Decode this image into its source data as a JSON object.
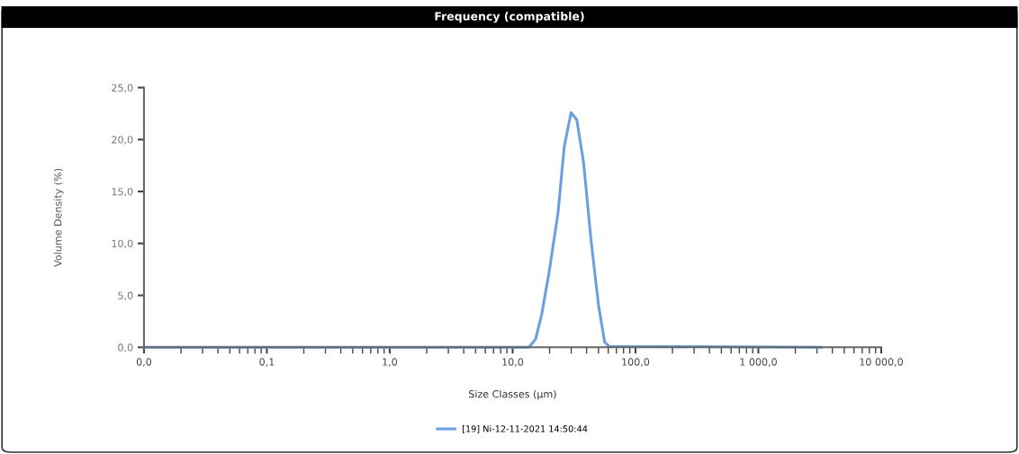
{
  "chart_data": {
    "type": "line",
    "title": "Frequency (compatible)",
    "xlabel": "Size Classes (µm)",
    "ylabel": "Volume Density (%)",
    "log": "x",
    "xlim": [
      0.01,
      10000
    ],
    "xticks": [
      {
        "value": 0.01,
        "label": "0,0"
      },
      {
        "value": 0.1,
        "label": "0,1"
      },
      {
        "value": 1,
        "label": "1,0"
      },
      {
        "value": 10,
        "label": "10,0"
      },
      {
        "value": 100,
        "label": "100,0"
      },
      {
        "value": 1000,
        "label": "1 000,0"
      },
      {
        "value": 10000,
        "label": "10 000,0"
      }
    ],
    "ylim": [
      0,
      25
    ],
    "yticks": [
      {
        "value": 0,
        "label": "0,0"
      },
      {
        "value": 5,
        "label": "5,0"
      },
      {
        "value": 10,
        "label": "10,0"
      },
      {
        "value": 15,
        "label": "15,0"
      },
      {
        "value": 20,
        "label": "20,0"
      },
      {
        "value": 25,
        "label": "25,0"
      }
    ],
    "grid": false,
    "legend": "bottom",
    "marker": "none",
    "line_style": "solid",
    "series": [
      {
        "name": "[19] Ni-12-11-2021 14:50:44",
        "color": "#6a9fe0",
        "x": [
          0.01,
          13.6,
          15.4,
          17.2,
          19.8,
          23.4,
          26.3,
          29.9,
          33.3,
          37.8,
          43.5,
          50.1,
          56.1,
          61,
          3250
        ],
        "values": [
          0,
          0,
          0.8,
          3.1,
          7.2,
          12.9,
          19.3,
          22.6,
          21.9,
          17.8,
          10.3,
          4.0,
          0.5,
          0.1,
          0
        ]
      }
    ]
  }
}
